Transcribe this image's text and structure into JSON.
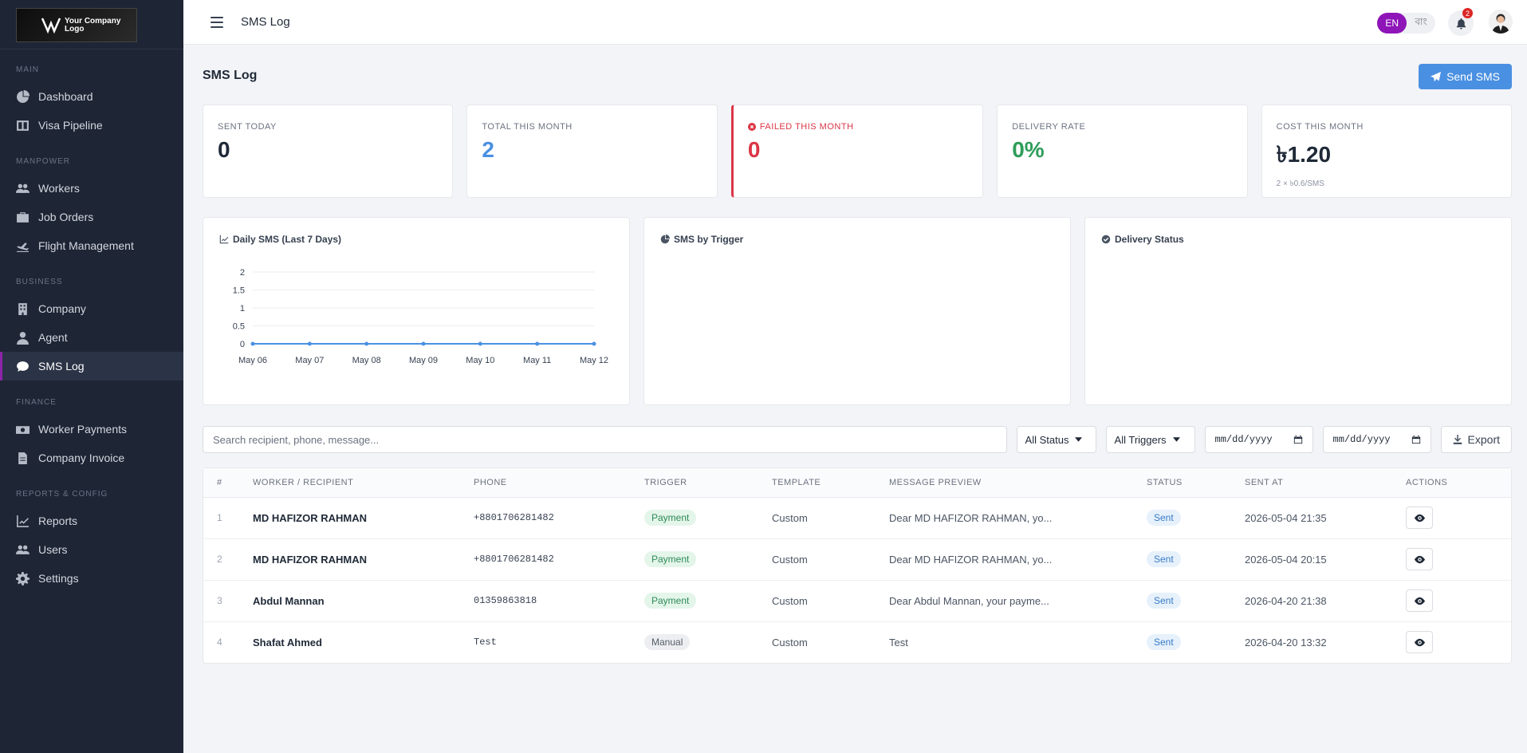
{
  "brand": {
    "logo_text_line1": "Your Company",
    "logo_text_line2": "Logo"
  },
  "sidebar": {
    "sections": [
      {
        "title": "MAIN",
        "items": [
          {
            "label": "Dashboard",
            "icon": "chart-pie-icon"
          },
          {
            "label": "Visa Pipeline",
            "icon": "columns-icon"
          }
        ]
      },
      {
        "title": "MANPOWER",
        "items": [
          {
            "label": "Workers",
            "icon": "users-icon"
          },
          {
            "label": "Job Orders",
            "icon": "briefcase-icon"
          },
          {
            "label": "Flight Management",
            "icon": "plane-icon"
          }
        ]
      },
      {
        "title": "BUSINESS",
        "items": [
          {
            "label": "Company",
            "icon": "building-icon"
          },
          {
            "label": "Agent",
            "icon": "user-tie-icon"
          },
          {
            "label": "SMS Log",
            "icon": "comment-icon",
            "active": true
          }
        ]
      },
      {
        "title": "FINANCE",
        "items": [
          {
            "label": "Worker Payments",
            "icon": "money-icon"
          },
          {
            "label": "Company Invoice",
            "icon": "invoice-icon"
          }
        ]
      },
      {
        "title": "REPORTS & CONFIG",
        "items": [
          {
            "label": "Reports",
            "icon": "chart-line-icon"
          },
          {
            "label": "Users",
            "icon": "users-cog-icon"
          },
          {
            "label": "Settings",
            "icon": "gear-icon"
          }
        ]
      }
    ]
  },
  "topbar": {
    "title": "SMS Log",
    "lang_en": "EN",
    "lang_bn": "বাং",
    "notification_count": "2"
  },
  "page": {
    "title": "SMS Log",
    "send_button": "Send SMS"
  },
  "stats": {
    "sent_today": {
      "label": "SENT TODAY",
      "value": "0"
    },
    "total_month": {
      "label": "TOTAL THIS MONTH",
      "value": "2"
    },
    "failed_month": {
      "label": "FAILED THIS MONTH",
      "value": "0"
    },
    "delivery_rate": {
      "label": "DELIVERY RATE",
      "value": "0%"
    },
    "cost_month": {
      "label": "COST THIS MONTH",
      "value": "৳1.20",
      "sub": "2 × ৳0.6/SMS"
    }
  },
  "charts": {
    "daily": {
      "title": "Daily SMS (Last 7 Days)"
    },
    "trigger": {
      "title": "SMS by Trigger"
    },
    "delivery": {
      "title": "Delivery Status"
    }
  },
  "chart_data": {
    "type": "line",
    "title": "Daily SMS (Last 7 Days)",
    "categories": [
      "May 06",
      "May 07",
      "May 08",
      "May 09",
      "May 10",
      "May 11",
      "May 12"
    ],
    "series": [
      {
        "values": [
          0,
          0,
          0,
          0,
          0,
          0,
          0
        ]
      }
    ],
    "ylim": [
      0,
      2
    ],
    "yticks": [
      "0",
      "0.5",
      "1",
      "1.5",
      "2"
    ],
    "grid": true,
    "color": "#4a90e2"
  },
  "filters": {
    "search_placeholder": "Search recipient, phone, message...",
    "status_value": "All Status",
    "trigger_value": "All Triggers",
    "date_from": "mm/dd/yyyy",
    "date_to": "mm/dd/yyyy",
    "export_label": "Export"
  },
  "table": {
    "headers": [
      "#",
      "WORKER / RECIPIENT",
      "PHONE",
      "TRIGGER",
      "TEMPLATE",
      "MESSAGE PREVIEW",
      "STATUS",
      "SENT AT",
      "ACTIONS"
    ],
    "rows": [
      {
        "num": "1",
        "name": "MD HAFIZOR RAHMAN",
        "phone": "+8801706281482",
        "trigger": "Payment",
        "template": "Custom",
        "preview": "Dear MD HAFIZOR RAHMAN, yo...",
        "status": "Sent",
        "sent_at": "2026-05-04 21:35"
      },
      {
        "num": "2",
        "name": "MD HAFIZOR RAHMAN",
        "phone": "+8801706281482",
        "trigger": "Payment",
        "template": "Custom",
        "preview": "Dear MD HAFIZOR RAHMAN, yo...",
        "status": "Sent",
        "sent_at": "2026-05-04 20:15"
      },
      {
        "num": "3",
        "name": "Abdul Mannan",
        "phone": "01359863818",
        "trigger": "Payment",
        "template": "Custom",
        "preview": "Dear Abdul Mannan, your payme...",
        "status": "Sent",
        "sent_at": "2026-04-20 21:38"
      },
      {
        "num": "4",
        "name": "Shafat Ahmed",
        "phone": "Test",
        "trigger": "Manual",
        "template": "Custom",
        "preview": "Test",
        "status": "Sent",
        "sent_at": "2026-04-20 13:32"
      }
    ]
  }
}
